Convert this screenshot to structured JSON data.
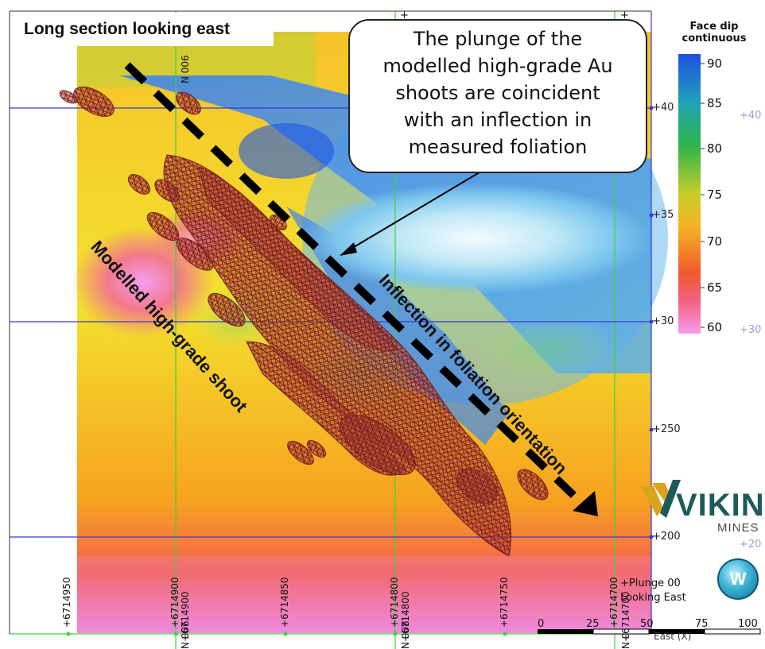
{
  "title": "Long section looking east",
  "callout": {
    "lines": [
      "The plunge of the",
      "modelled high-grade Au",
      "shoots are coincident",
      "with an inflection in",
      "measured foliation"
    ]
  },
  "labels": {
    "shoot": "Modelled high-grade shoot",
    "inflection": "Inflection in foliation orientation"
  },
  "legend": {
    "title_line1": "Face dip",
    "title_line2": "continuous",
    "ticks": [
      "90",
      "85",
      "80",
      "75",
      "70",
      "65",
      "60"
    ],
    "colors": [
      "#1f4fe0",
      "#1fa0b8",
      "#2fb54a",
      "#b9c828",
      "#f2b21f",
      "#ef5a2a",
      "#f48ae0"
    ]
  },
  "northings": [
    "+6714950",
    "+6714900",
    "+6714850",
    "+6714800",
    "+6714750",
    "+6714700"
  ],
  "grid_top_labels": [
    "+",
    "+"
  ],
  "northing_tags": {
    "a": "+6714900",
    "a_n": "N 006",
    "b": "+6714800",
    "b_n": "N 008",
    "c": "+6714700",
    "c_n": "N 0",
    "top_n": "N 006"
  },
  "elevations": [
    "+40",
    "+35",
    "+30",
    "+250",
    "+200"
  ],
  "elevations_far": [
    "+40",
    "+30",
    "+20"
  ],
  "view": {
    "plunge": "+Plunge 00",
    "looking": "Looking East"
  },
  "scale": {
    "ticks": [
      "0",
      "25",
      "50",
      "75",
      "100"
    ],
    "axis_label": "East (X)"
  },
  "logo": {
    "name": "VIKING",
    "sub": "MINES",
    "compass": "W",
    "brand_color": "#1f5a5a",
    "accent_color": "#d9a21f"
  }
}
